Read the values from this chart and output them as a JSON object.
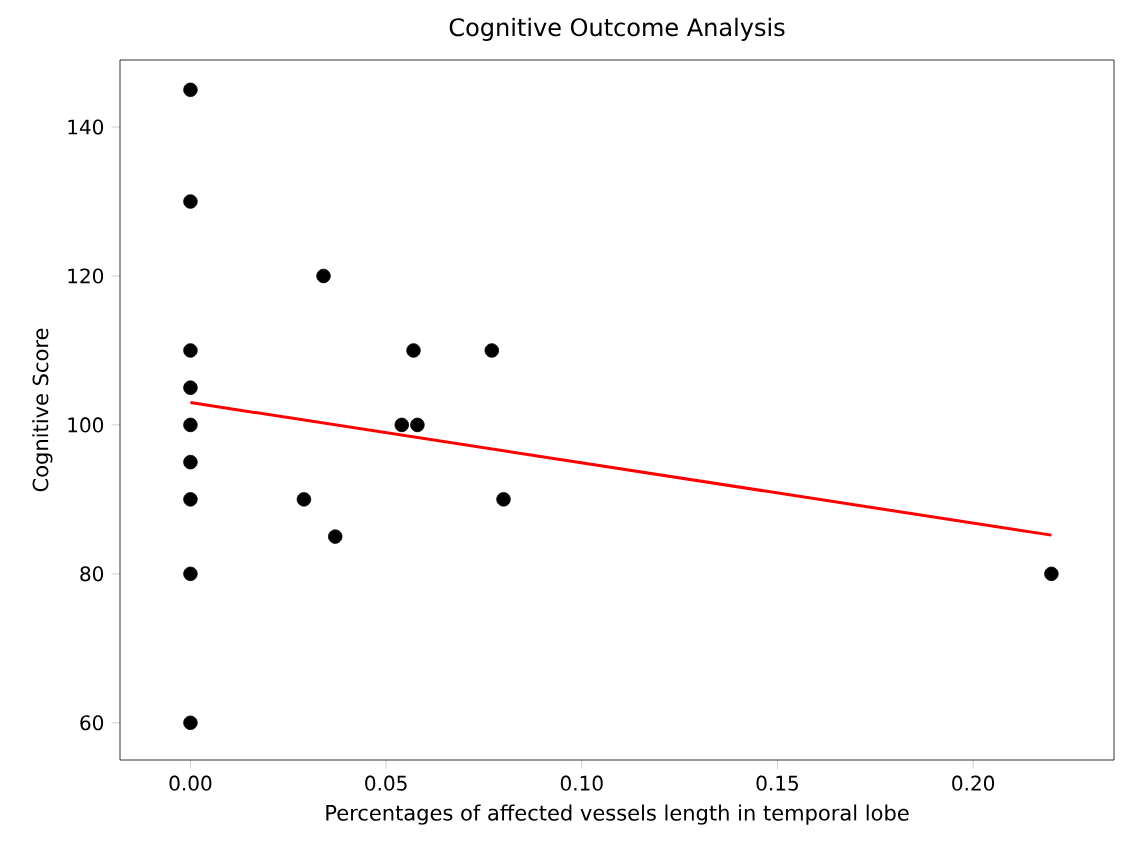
{
  "chart_data": {
    "type": "scatter",
    "title": "Cognitive Outcome Analysis",
    "xlabel": "Percentages of affected vessels length in temporal lobe",
    "ylabel": "Cognitive Score",
    "xlim": [
      -0.018,
      0.236
    ],
    "ylim": [
      55,
      149
    ],
    "xticks": [
      {
        "value": 0,
        "label": "0.00"
      },
      {
        "value": 0.05,
        "label": "0.05"
      },
      {
        "value": 0.1,
        "label": "0.10"
      },
      {
        "value": 0.15,
        "label": "0.15"
      },
      {
        "value": 0.2,
        "label": "0.20"
      }
    ],
    "yticks": [
      60,
      80,
      100,
      120,
      140
    ],
    "grid": false,
    "marker": "circle",
    "series": [
      {
        "color": "#000000",
        "x": [
          0,
          0,
          0,
          0,
          0,
          0,
          0,
          0,
          0,
          0.029,
          0.034,
          0.037,
          0.054,
          0.058,
          0.057,
          0.077,
          0.08,
          0.22
        ],
        "values": [
          145,
          130,
          110,
          105,
          100,
          95,
          90,
          80,
          60,
          90,
          120,
          85,
          100,
          100,
          110,
          110,
          90,
          80
        ]
      },
      {
        "type": "line",
        "color": "#ff0000",
        "marker": "none",
        "x": [
          0,
          0.22
        ],
        "values": [
          103,
          85.2
        ]
      }
    ]
  }
}
